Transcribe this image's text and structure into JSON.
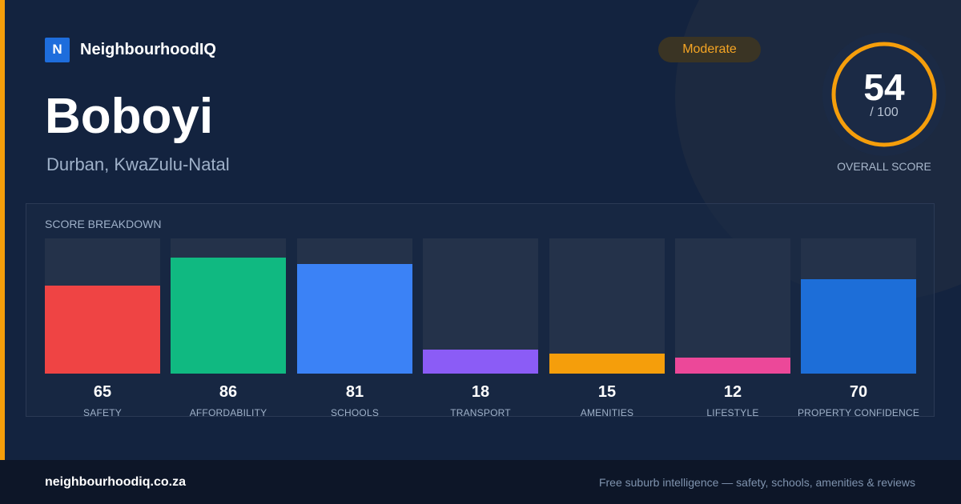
{
  "brand": {
    "logo_letter": "N",
    "name": "NeighbourhoodIQ"
  },
  "badge": {
    "label": "Moderate",
    "color": "#f5a524"
  },
  "suburb": {
    "name": "Boboyi",
    "location": "Durban, KwaZulu-Natal"
  },
  "overall": {
    "score": "54",
    "max": "/ 100",
    "label": "OVERALL SCORE",
    "fraction": 0.54,
    "ring_color": "#f59e0b"
  },
  "breakdown": {
    "title": "SCORE BREAKDOWN",
    "items": [
      {
        "value": "65",
        "label": "SAFETY",
        "color": "#ef4444"
      },
      {
        "value": "86",
        "label": "AFFORDABILITY",
        "color": "#10b981"
      },
      {
        "value": "81",
        "label": "SCHOOLS",
        "color": "#3b82f6"
      },
      {
        "value": "18",
        "label": "TRANSPORT",
        "color": "#8b5cf6"
      },
      {
        "value": "15",
        "label": "AMENITIES",
        "color": "#f59e0b"
      },
      {
        "value": "12",
        "label": "LIFESTYLE",
        "color": "#ec4899"
      },
      {
        "value": "70",
        "label": "PROPERTY CONFIDENCE",
        "color": "#1d6ed8"
      }
    ]
  },
  "chart_data": {
    "type": "bar",
    "categories": [
      "SAFETY",
      "AFFORDABILITY",
      "SCHOOLS",
      "TRANSPORT",
      "AMENITIES",
      "LIFESTYLE",
      "PROPERTY CONFIDENCE"
    ],
    "values": [
      65,
      86,
      81,
      18,
      15,
      12,
      70
    ],
    "title": "SCORE BREAKDOWN",
    "ylim": [
      0,
      100
    ],
    "grid": false
  },
  "footer": {
    "domain": "neighbourhoodiq.co.za",
    "tagline": "Free suburb intelligence — safety, schools, amenities & reviews"
  }
}
